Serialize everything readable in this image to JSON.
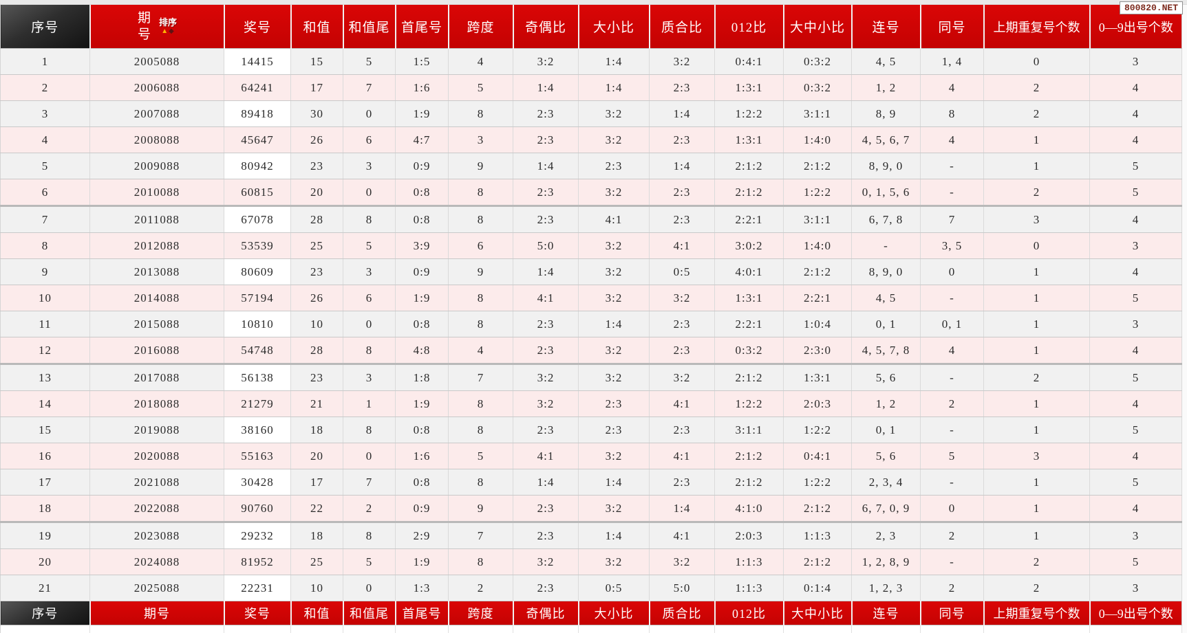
{
  "site_badge": "800820.NET",
  "sort_label": "排序",
  "theme": {
    "header_red": "#c40202",
    "header_red_light": "#da0606",
    "row_grey": "#f1f1f1",
    "row_pink": "#fcebeb",
    "sort_up": "#ffb103",
    "sort_down": "#5f1212",
    "badge_text": "#7d2b1e"
  },
  "columns": [
    "序号",
    "期号",
    "奖号",
    "和值",
    "和值尾",
    "首尾号",
    "跨度",
    "奇偶比",
    "大小比",
    "质合比",
    "012比",
    "大中小比",
    "连号",
    "同号",
    "上期重复号个数",
    "0—9出号个数"
  ],
  "column_keys": [
    "index",
    "period",
    "number",
    "sum",
    "sum-tail",
    "first-last",
    "span",
    "odd-even",
    "big-small",
    "prime-composite",
    "012-ratio",
    "big-mid-small",
    "consecutive",
    "same-number",
    "repeat-prev-count",
    "digit-appear-count"
  ],
  "group_breaks": [
    5,
    11,
    17
  ],
  "rows": [
    [
      "1",
      "2005088",
      "14415",
      "15",
      "5",
      "1:5",
      "4",
      "3:2",
      "1:4",
      "3:2",
      "0:4:1",
      "0:3:2",
      "4, 5",
      "1, 4",
      "0",
      "3"
    ],
    [
      "2",
      "2006088",
      "64241",
      "17",
      "7",
      "1:6",
      "5",
      "1:4",
      "1:4",
      "2:3",
      "1:3:1",
      "0:3:2",
      "1, 2",
      "4",
      "2",
      "4"
    ],
    [
      "3",
      "2007088",
      "89418",
      "30",
      "0",
      "1:9",
      "8",
      "2:3",
      "3:2",
      "1:4",
      "1:2:2",
      "3:1:1",
      "8, 9",
      "8",
      "2",
      "4"
    ],
    [
      "4",
      "2008088",
      "45647",
      "26",
      "6",
      "4:7",
      "3",
      "2:3",
      "3:2",
      "2:3",
      "1:3:1",
      "1:4:0",
      "4, 5, 6, 7",
      "4",
      "1",
      "4"
    ],
    [
      "5",
      "2009088",
      "80942",
      "23",
      "3",
      "0:9",
      "9",
      "1:4",
      "2:3",
      "1:4",
      "2:1:2",
      "2:1:2",
      "8, 9, 0",
      "-",
      "1",
      "5"
    ],
    [
      "6",
      "2010088",
      "60815",
      "20",
      "0",
      "0:8",
      "8",
      "2:3",
      "3:2",
      "2:3",
      "2:1:2",
      "1:2:2",
      "0, 1, 5, 6",
      "-",
      "2",
      "5"
    ],
    [
      "7",
      "2011088",
      "67078",
      "28",
      "8",
      "0:8",
      "8",
      "2:3",
      "4:1",
      "2:3",
      "2:2:1",
      "3:1:1",
      "6, 7, 8",
      "7",
      "3",
      "4"
    ],
    [
      "8",
      "2012088",
      "53539",
      "25",
      "5",
      "3:9",
      "6",
      "5:0",
      "3:2",
      "4:1",
      "3:0:2",
      "1:4:0",
      "-",
      "3, 5",
      "0",
      "3"
    ],
    [
      "9",
      "2013088",
      "80609",
      "23",
      "3",
      "0:9",
      "9",
      "1:4",
      "3:2",
      "0:5",
      "4:0:1",
      "2:1:2",
      "8, 9, 0",
      "0",
      "1",
      "4"
    ],
    [
      "10",
      "2014088",
      "57194",
      "26",
      "6",
      "1:9",
      "8",
      "4:1",
      "3:2",
      "3:2",
      "1:3:1",
      "2:2:1",
      "4, 5",
      "-",
      "1",
      "5"
    ],
    [
      "11",
      "2015088",
      "10810",
      "10",
      "0",
      "0:8",
      "8",
      "2:3",
      "1:4",
      "2:3",
      "2:2:1",
      "1:0:4",
      "0, 1",
      "0, 1",
      "1",
      "3"
    ],
    [
      "12",
      "2016088",
      "54748",
      "28",
      "8",
      "4:8",
      "4",
      "2:3",
      "3:2",
      "2:3",
      "0:3:2",
      "2:3:0",
      "4, 5, 7, 8",
      "4",
      "1",
      "4"
    ],
    [
      "13",
      "2017088",
      "56138",
      "23",
      "3",
      "1:8",
      "7",
      "3:2",
      "3:2",
      "3:2",
      "2:1:2",
      "1:3:1",
      "5, 6",
      "-",
      "2",
      "5"
    ],
    [
      "14",
      "2018088",
      "21279",
      "21",
      "1",
      "1:9",
      "8",
      "3:2",
      "2:3",
      "4:1",
      "1:2:2",
      "2:0:3",
      "1, 2",
      "2",
      "1",
      "4"
    ],
    [
      "15",
      "2019088",
      "38160",
      "18",
      "8",
      "0:8",
      "8",
      "2:3",
      "2:3",
      "2:3",
      "3:1:1",
      "1:2:2",
      "0, 1",
      "-",
      "1",
      "5"
    ],
    [
      "16",
      "2020088",
      "55163",
      "20",
      "0",
      "1:6",
      "5",
      "4:1",
      "3:2",
      "4:1",
      "2:1:2",
      "0:4:1",
      "5, 6",
      "5",
      "3",
      "4"
    ],
    [
      "17",
      "2021088",
      "30428",
      "17",
      "7",
      "0:8",
      "8",
      "1:4",
      "1:4",
      "2:3",
      "2:1:2",
      "1:2:2",
      "2, 3, 4",
      "-",
      "1",
      "5"
    ],
    [
      "18",
      "2022088",
      "90760",
      "22",
      "2",
      "0:9",
      "9",
      "2:3",
      "3:2",
      "1:4",
      "4:1:0",
      "2:1:2",
      "6, 7, 0, 9",
      "0",
      "1",
      "4"
    ],
    [
      "19",
      "2023088",
      "29232",
      "18",
      "8",
      "2:9",
      "7",
      "2:3",
      "1:4",
      "4:1",
      "2:0:3",
      "1:1:3",
      "2, 3",
      "2",
      "1",
      "3"
    ],
    [
      "20",
      "2024088",
      "81952",
      "25",
      "5",
      "1:9",
      "8",
      "3:2",
      "3:2",
      "3:2",
      "1:1:3",
      "2:1:2",
      "1, 2, 8, 9",
      "-",
      "2",
      "5"
    ],
    [
      "21",
      "2025088",
      "22231",
      "10",
      "0",
      "1:3",
      "2",
      "2:3",
      "0:5",
      "5:0",
      "1:1:3",
      "0:1:4",
      "1, 2, 3",
      "2",
      "2",
      "3"
    ]
  ]
}
